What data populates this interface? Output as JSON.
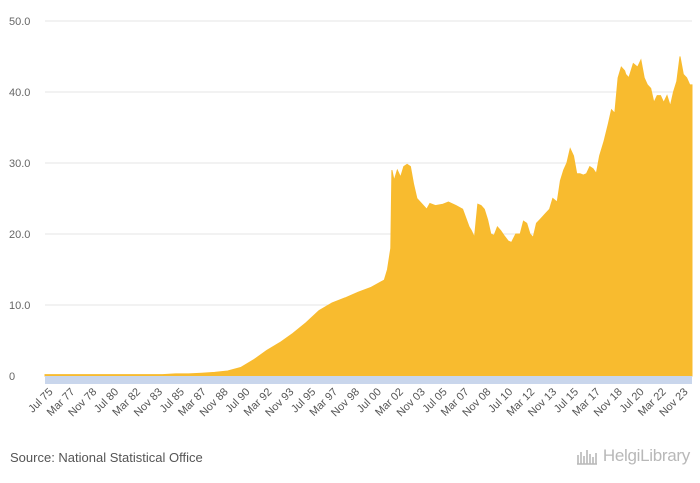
{
  "chart_data": {
    "type": "area",
    "title": "",
    "xlabel": "",
    "ylabel": "",
    "ylim": [
      0,
      50
    ],
    "yticks": [
      "0",
      "10.0",
      "20.0",
      "30.0",
      "40.0",
      "50.0"
    ],
    "grid": true,
    "legend": "none",
    "colors": {
      "fill": "#F8BB2F",
      "axis_band": "#C9D6EC",
      "grid": "#E6E6E6"
    },
    "x_tick_labels": [
      "Jul 75",
      "Mar 77",
      "Nov 78",
      "Jul 80",
      "Mar 82",
      "Nov 83",
      "Jul 85",
      "Mar 87",
      "Nov 88",
      "Jul 90",
      "Mar 92",
      "Nov 93",
      "Jul 95",
      "Mar 97",
      "Nov 98",
      "Jul 00",
      "Mar 02",
      "Nov 03",
      "Jul 05",
      "Mar 07",
      "Nov 08",
      "Jul 10",
      "Mar 12",
      "Nov 13",
      "Jul 15",
      "Mar 17",
      "Nov 18",
      "Jul 20",
      "Mar 22",
      "Nov 23"
    ],
    "series": [
      {
        "x": [
          "1975-07",
          "1976-07",
          "1977-07",
          "1978-07",
          "1979-07",
          "1980-07",
          "1981-07",
          "1982-07",
          "1983-07",
          "1984-07",
          "1985-07",
          "1986-07",
          "1987-07",
          "1988-07",
          "1989-07",
          "1990-07",
          "1991-07",
          "1992-07",
          "1993-07",
          "1994-07",
          "1995-07",
          "1996-07",
          "1997-07",
          "1998-07",
          "1999-07",
          "2000-07",
          "2001-07",
          "2001-10",
          "2002-01",
          "2002-02",
          "2002-04",
          "2002-07",
          "2002-10",
          "2003-01",
          "2003-04",
          "2003-07",
          "2003-10",
          "2004-01",
          "2004-04",
          "2004-07",
          "2004-10",
          "2005-01",
          "2005-06",
          "2006-01",
          "2006-06",
          "2007-01",
          "2007-07",
          "2008-01",
          "2008-03",
          "2008-06",
          "2008-09",
          "2008-12",
          "2009-03",
          "2009-06",
          "2009-09",
          "2009-12",
          "2010-03",
          "2010-06",
          "2010-09",
          "2011-01",
          "2011-04",
          "2011-08",
          "2011-12",
          "2012-03",
          "2012-06",
          "2012-09",
          "2012-12",
          "2013-03",
          "2013-06",
          "2013-09",
          "2013-12",
          "2014-03",
          "2014-06",
          "2014-10",
          "2015-01",
          "2015-04",
          "2015-07",
          "2015-10",
          "2016-01",
          "2016-04",
          "2016-07",
          "2016-10",
          "2017-01",
          "2017-04",
          "2017-07",
          "2017-10",
          "2018-01",
          "2018-05",
          "2018-09",
          "2018-12",
          "2019-03",
          "2019-06",
          "2019-09",
          "2019-12",
          "2020-01",
          "2020-04",
          "2020-08",
          "2020-12",
          "2021-03",
          "2021-06",
          "2021-09",
          "2021-12",
          "2022-03",
          "2022-06",
          "2022-09",
          "2022-12",
          "2023-03",
          "2023-06",
          "2023-09",
          "2023-12",
          "2024-03",
          "2024-06",
          "2024-09",
          "2024-12",
          "2025-02"
        ],
        "values": [
          0.2,
          0.2,
          0.2,
          0.2,
          0.2,
          0.2,
          0.2,
          0.2,
          0.2,
          0.2,
          0.3,
          0.3,
          0.4,
          0.5,
          0.7,
          1.2,
          2.3,
          3.6,
          4.7,
          6.0,
          7.5,
          9.2,
          10.3,
          11.0,
          11.8,
          12.5,
          13.5,
          15.0,
          18.0,
          29.0,
          27.5,
          29.0,
          28.0,
          29.5,
          29.8,
          29.5,
          27.0,
          25.0,
          24.5,
          24.0,
          23.5,
          24.3,
          24.0,
          24.2,
          24.5,
          24.0,
          23.5,
          21.0,
          20.5,
          19.5,
          24.2,
          24.0,
          23.5,
          22.0,
          20.0,
          19.8,
          21.0,
          20.5,
          19.8,
          19.0,
          18.8,
          20.0,
          20.0,
          21.8,
          21.5,
          20.0,
          19.5,
          21.5,
          22.0,
          22.5,
          23.0,
          23.5,
          25.0,
          24.5,
          27.5,
          29.0,
          30.0,
          32.0,
          31.0,
          28.5,
          28.5,
          28.3,
          28.5,
          29.5,
          29.2,
          28.5,
          31.0,
          33.0,
          35.5,
          37.5,
          37.0,
          42.0,
          43.5,
          43.0,
          42.5,
          42.0,
          44.0,
          43.5,
          44.5,
          42.0,
          41.0,
          40.5,
          38.5,
          39.5,
          39.5,
          38.5,
          39.5,
          38.0,
          40.0,
          41.5,
          45.0,
          42.5,
          42.0,
          41.0,
          41.0
        ]
      }
    ]
  },
  "footer": {
    "source": "Source: National Statistical Office",
    "brand": "HelgiLibrary"
  }
}
